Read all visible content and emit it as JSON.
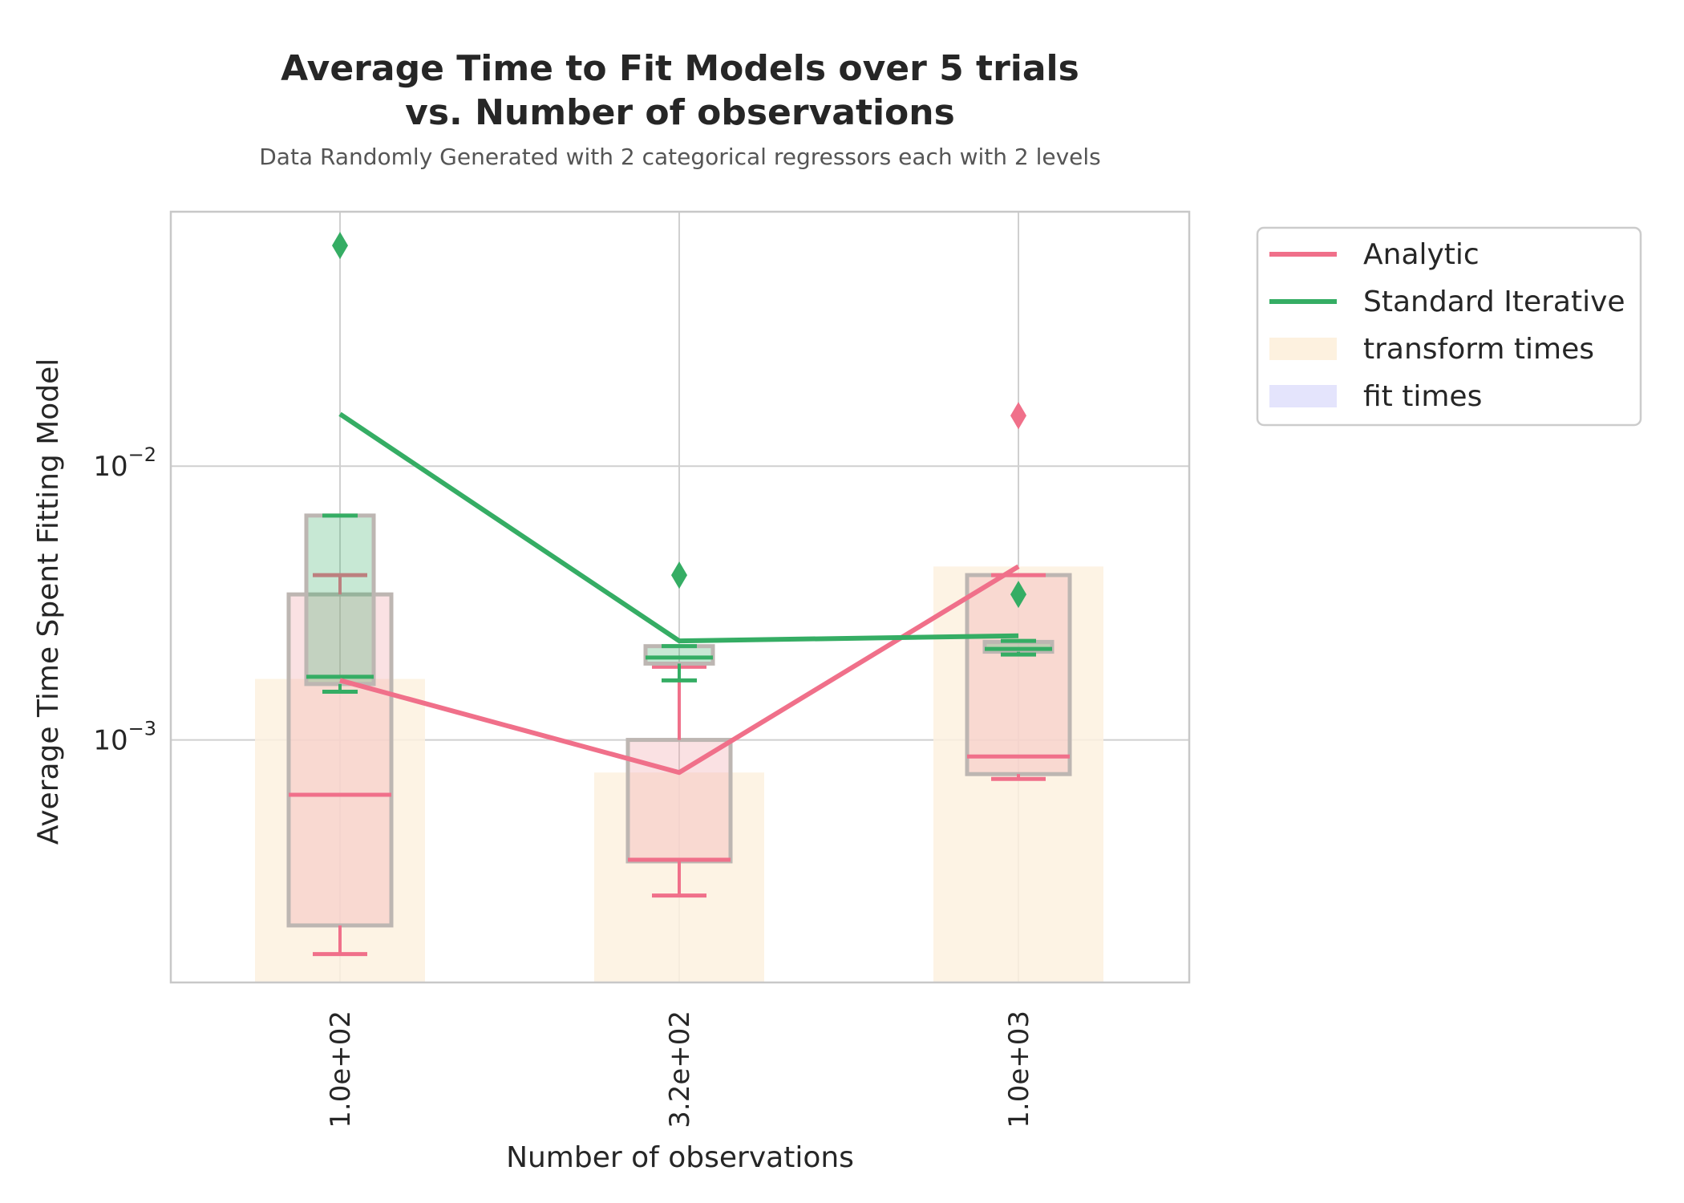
{
  "chart_data": {
    "type": "box+line",
    "title": [
      "Average Time to Fit Models over 5 trials",
      "vs. Number of observations"
    ],
    "subtitle": "Data Randomly Generated with 2 categorical regressors each with 2 levels",
    "xlabel": "Number of observations",
    "ylabel": "Average Time Spent Fitting Model",
    "yscale": "log",
    "ylim": [
      0.00013,
      0.085
    ],
    "y_ticks": [
      {
        "value": 0.01,
        "base": "10",
        "exp": "−2"
      },
      {
        "value": 0.001,
        "base": "10",
        "exp": "−3"
      }
    ],
    "categories": [
      "1.0e+02",
      "3.2e+02",
      "1.0e+03"
    ],
    "grid": true,
    "legend_position": "outside-right",
    "colors": {
      "analytic": "#f0708a",
      "iterative": "#35ad64",
      "transform": "#fdf1df",
      "fit": "#e4e4fc",
      "box_edge": "#bdb6b2"
    },
    "series": [
      {
        "name": "Analytic",
        "kind": "line",
        "values": [
          0.00165,
          0.00076,
          0.0043
        ]
      },
      {
        "name": "Standard Iterative",
        "kind": "line",
        "values": [
          0.0155,
          0.0023,
          0.0024
        ]
      }
    ],
    "bars": {
      "name": "transform times",
      "values": [
        0.00167,
        0.00076,
        0.0043
      ]
    },
    "fit_legend_label": "fit times",
    "boxes": {
      "analytic": [
        {
          "whislo": 0.000165,
          "q1": 0.00021,
          "med": 0.00063,
          "q3": 0.0034,
          "whishi": 0.004,
          "fliers": []
        },
        {
          "whislo": 0.00027,
          "q1": 0.00036,
          "med": 0.000365,
          "q3": 0.001,
          "whishi": 0.00185,
          "fliers": []
        },
        {
          "whislo": 0.00072,
          "q1": 0.00075,
          "med": 0.00087,
          "q3": 0.004,
          "whishi": 0.004,
          "fliers": [
            0.0153
          ]
        }
      ],
      "iterative": [
        {
          "whislo": 0.0015,
          "q1": 0.0016,
          "med": 0.0017,
          "q3": 0.0066,
          "whishi": 0.0066,
          "fliers": [
            0.064
          ]
        },
        {
          "whislo": 0.00165,
          "q1": 0.0019,
          "med": 0.002,
          "q3": 0.0022,
          "whishi": 0.0022,
          "fliers": [
            0.004
          ]
        },
        {
          "whislo": 0.00205,
          "q1": 0.0021,
          "med": 0.00215,
          "q3": 0.00228,
          "whishi": 0.0023,
          "fliers": [
            0.0034
          ]
        }
      ]
    }
  }
}
